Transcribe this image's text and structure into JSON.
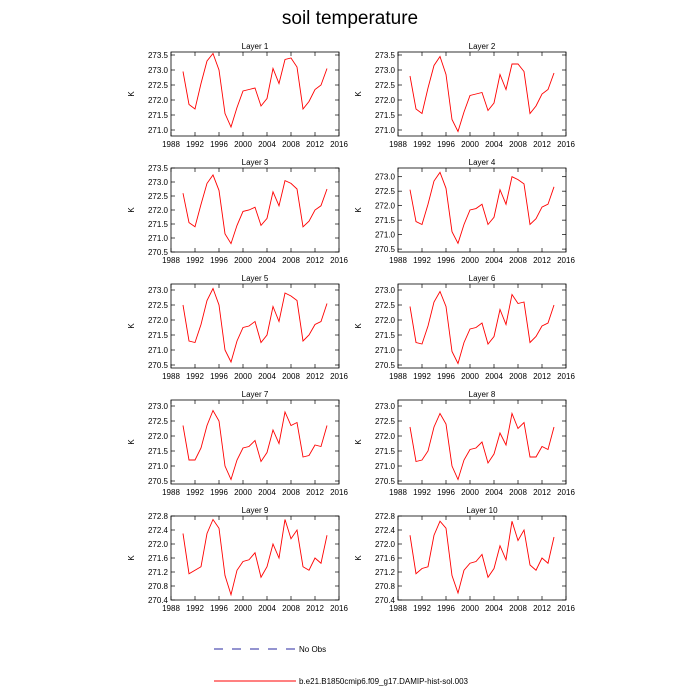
{
  "title": "soil temperature",
  "chart_data": [
    {
      "type": "line",
      "title": "Layer 1",
      "xlabel": "",
      "ylabel": "K",
      "xlim": [
        1988,
        2016
      ],
      "ylim": [
        270.8,
        273.6
      ],
      "xticks": [
        1988,
        1992,
        1996,
        2000,
        2004,
        2008,
        2012,
        2016
      ],
      "yticks": [
        271.0,
        271.5,
        272.0,
        272.5,
        273.0,
        273.5
      ],
      "series": [
        {
          "color": "#ff0000",
          "x": [
            1990,
            1991,
            1992,
            1993,
            1994,
            1995,
            1996,
            1997,
            1998,
            1999,
            2000,
            2001,
            2002,
            2003,
            2004,
            2005,
            2006,
            2007,
            2008,
            2009,
            2010,
            2011,
            2012,
            2013,
            2014
          ],
          "y": [
            272.95,
            271.85,
            271.7,
            272.55,
            273.3,
            273.55,
            273.0,
            271.55,
            271.1,
            271.75,
            272.3,
            272.35,
            272.4,
            271.8,
            272.05,
            273.05,
            272.55,
            273.35,
            273.4,
            273.1,
            271.7,
            271.95,
            272.35,
            272.5,
            273.05
          ]
        }
      ]
    },
    {
      "type": "line",
      "title": "Layer 2",
      "xlabel": "",
      "ylabel": "K",
      "xlim": [
        1988,
        2016
      ],
      "ylim": [
        270.8,
        273.6
      ],
      "xticks": [
        1988,
        1992,
        1996,
        2000,
        2004,
        2008,
        2012,
        2016
      ],
      "yticks": [
        271.0,
        271.5,
        272.0,
        272.5,
        273.0,
        273.5
      ],
      "series": [
        {
          "color": "#ff0000",
          "x": [
            1990,
            1991,
            1992,
            1993,
            1994,
            1995,
            1996,
            1997,
            1998,
            1999,
            2000,
            2001,
            2002,
            2003,
            2004,
            2005,
            2006,
            2007,
            2008,
            2009,
            2010,
            2011,
            2012,
            2013,
            2014
          ],
          "y": [
            272.8,
            271.7,
            271.55,
            272.4,
            273.15,
            273.45,
            272.85,
            271.35,
            270.95,
            271.6,
            272.15,
            272.2,
            272.25,
            271.65,
            271.9,
            272.85,
            272.35,
            273.2,
            273.2,
            272.95,
            271.55,
            271.8,
            272.2,
            272.35,
            272.9
          ]
        }
      ]
    },
    {
      "type": "line",
      "title": "Layer 3",
      "xlabel": "",
      "ylabel": "K",
      "xlim": [
        1988,
        2016
      ],
      "ylim": [
        270.5,
        273.5
      ],
      "xticks": [
        1988,
        1992,
        1996,
        2000,
        2004,
        2008,
        2012,
        2016
      ],
      "yticks": [
        270.5,
        271.0,
        271.5,
        272.0,
        272.5,
        273.0,
        273.5
      ],
      "series": [
        {
          "color": "#ff0000",
          "x": [
            1990,
            1991,
            1992,
            1993,
            1994,
            1995,
            1996,
            1997,
            1998,
            1999,
            2000,
            2001,
            2002,
            2003,
            2004,
            2005,
            2006,
            2007,
            2008,
            2009,
            2010,
            2011,
            2012,
            2013,
            2014
          ],
          "y": [
            272.6,
            271.55,
            271.4,
            272.2,
            272.95,
            273.25,
            272.7,
            271.15,
            270.8,
            271.45,
            271.95,
            272.0,
            272.1,
            271.45,
            271.7,
            272.65,
            272.15,
            273.05,
            272.95,
            272.75,
            271.4,
            271.6,
            272.0,
            272.15,
            272.75
          ]
        }
      ]
    },
    {
      "type": "line",
      "title": "Layer 4",
      "xlabel": "",
      "ylabel": "K",
      "xlim": [
        1988,
        2016
      ],
      "ylim": [
        270.4,
        273.3
      ],
      "xticks": [
        1988,
        1992,
        1996,
        2000,
        2004,
        2008,
        2012,
        2016
      ],
      "yticks": [
        270.5,
        271.0,
        271.5,
        272.0,
        272.5,
        273.0
      ],
      "series": [
        {
          "color": "#ff0000",
          "x": [
            1990,
            1991,
            1992,
            1993,
            1994,
            1995,
            1996,
            1997,
            1998,
            1999,
            2000,
            2001,
            2002,
            2003,
            2004,
            2005,
            2006,
            2007,
            2008,
            2009,
            2010,
            2011,
            2012,
            2013,
            2014
          ],
          "y": [
            272.55,
            271.45,
            271.35,
            272.05,
            272.85,
            273.15,
            272.6,
            271.1,
            270.7,
            271.35,
            271.85,
            271.9,
            272.05,
            271.35,
            271.6,
            272.55,
            272.05,
            273.0,
            272.9,
            272.75,
            271.35,
            271.55,
            271.95,
            272.05,
            272.65
          ]
        }
      ]
    },
    {
      "type": "line",
      "title": "Layer 5",
      "xlabel": "",
      "ylabel": "K",
      "xlim": [
        1988,
        2016
      ],
      "ylim": [
        270.4,
        273.2
      ],
      "xticks": [
        1988,
        1992,
        1996,
        2000,
        2004,
        2008,
        2012,
        2016
      ],
      "yticks": [
        270.5,
        271.0,
        271.5,
        272.0,
        272.5,
        273.0
      ],
      "series": [
        {
          "color": "#ff0000",
          "x": [
            1990,
            1991,
            1992,
            1993,
            1994,
            1995,
            1996,
            1997,
            1998,
            1999,
            2000,
            2001,
            2002,
            2003,
            2004,
            2005,
            2006,
            2007,
            2008,
            2009,
            2010,
            2011,
            2012,
            2013,
            2014
          ],
          "y": [
            272.5,
            271.3,
            271.25,
            271.85,
            272.65,
            273.05,
            272.5,
            271.0,
            270.6,
            271.3,
            271.75,
            271.8,
            271.95,
            271.25,
            271.5,
            272.45,
            271.95,
            272.9,
            272.8,
            272.65,
            271.3,
            271.5,
            271.85,
            271.95,
            272.55
          ]
        }
      ]
    },
    {
      "type": "line",
      "title": "Layer 6",
      "xlabel": "",
      "ylabel": "K",
      "xlim": [
        1988,
        2016
      ],
      "ylim": [
        270.4,
        273.2
      ],
      "xticks": [
        1988,
        1992,
        1996,
        2000,
        2004,
        2008,
        2012,
        2016
      ],
      "yticks": [
        270.5,
        271.0,
        271.5,
        272.0,
        272.5,
        273.0
      ],
      "series": [
        {
          "color": "#ff0000",
          "x": [
            1990,
            1991,
            1992,
            1993,
            1994,
            1995,
            1996,
            1997,
            1998,
            1999,
            2000,
            2001,
            2002,
            2003,
            2004,
            2005,
            2006,
            2007,
            2008,
            2009,
            2010,
            2011,
            2012,
            2013,
            2014
          ],
          "y": [
            272.45,
            271.25,
            271.2,
            271.8,
            272.6,
            272.95,
            272.45,
            270.95,
            270.55,
            271.25,
            271.7,
            271.75,
            271.9,
            271.2,
            271.45,
            272.35,
            271.85,
            272.85,
            272.55,
            272.6,
            271.25,
            271.45,
            271.8,
            271.9,
            272.5
          ]
        }
      ]
    },
    {
      "type": "line",
      "title": "Layer 7",
      "xlabel": "",
      "ylabel": "K",
      "xlim": [
        1988,
        2016
      ],
      "ylim": [
        270.4,
        273.2
      ],
      "xticks": [
        1988,
        1992,
        1996,
        2000,
        2004,
        2008,
        2012,
        2016
      ],
      "yticks": [
        270.5,
        271.0,
        271.5,
        272.0,
        272.5,
        273.0
      ],
      "series": [
        {
          "color": "#ff0000",
          "x": [
            1990,
            1991,
            1992,
            1993,
            1994,
            1995,
            1996,
            1997,
            1998,
            1999,
            2000,
            2001,
            2002,
            2003,
            2004,
            2005,
            2006,
            2007,
            2008,
            2009,
            2010,
            2011,
            2012,
            2013,
            2014
          ],
          "y": [
            272.35,
            271.2,
            271.2,
            271.6,
            272.35,
            272.85,
            272.5,
            271.0,
            270.55,
            271.2,
            271.6,
            271.65,
            271.85,
            271.15,
            271.45,
            272.2,
            271.75,
            272.8,
            272.35,
            272.45,
            271.3,
            271.35,
            271.7,
            271.65,
            272.35
          ]
        }
      ]
    },
    {
      "type": "line",
      "title": "Layer 8",
      "xlabel": "",
      "ylabel": "K",
      "xlim": [
        1988,
        2016
      ],
      "ylim": [
        270.4,
        273.2
      ],
      "xticks": [
        1988,
        1992,
        1996,
        2000,
        2004,
        2008,
        2012,
        2016
      ],
      "yticks": [
        270.5,
        271.0,
        271.5,
        272.0,
        272.5,
        273.0
      ],
      "series": [
        {
          "color": "#ff0000",
          "x": [
            1990,
            1991,
            1992,
            1993,
            1994,
            1995,
            1996,
            1997,
            1998,
            1999,
            2000,
            2001,
            2002,
            2003,
            2004,
            2005,
            2006,
            2007,
            2008,
            2009,
            2010,
            2011,
            2012,
            2013,
            2014
          ],
          "y": [
            272.3,
            271.15,
            271.2,
            271.5,
            272.3,
            272.75,
            272.4,
            271.0,
            270.55,
            271.2,
            271.55,
            271.6,
            271.8,
            271.1,
            271.4,
            272.1,
            271.7,
            272.75,
            272.25,
            272.45,
            271.3,
            271.3,
            271.65,
            271.55,
            272.3
          ]
        }
      ]
    },
    {
      "type": "line",
      "title": "Layer 9",
      "xlabel": "",
      "ylabel": "K",
      "xlim": [
        1988,
        2016
      ],
      "ylim": [
        270.4,
        272.8
      ],
      "xticks": [
        1988,
        1992,
        1996,
        2000,
        2004,
        2008,
        2012,
        2016
      ],
      "yticks": [
        270.4,
        270.8,
        271.2,
        271.6,
        272.0,
        272.4,
        272.8
      ],
      "series": [
        {
          "color": "#ff0000",
          "x": [
            1990,
            1991,
            1992,
            1993,
            1994,
            1995,
            1996,
            1997,
            1998,
            1999,
            2000,
            2001,
            2002,
            2003,
            2004,
            2005,
            2006,
            2007,
            2008,
            2009,
            2010,
            2011,
            2012,
            2013,
            2014
          ],
          "y": [
            272.3,
            271.15,
            271.25,
            271.35,
            272.3,
            272.7,
            272.45,
            271.1,
            270.55,
            271.25,
            271.5,
            271.55,
            271.75,
            271.05,
            271.35,
            272.0,
            271.6,
            272.7,
            272.15,
            272.4,
            271.35,
            271.25,
            271.6,
            271.45,
            272.25
          ]
        }
      ]
    },
    {
      "type": "line",
      "title": "Layer 10",
      "xlabel": "",
      "ylabel": "K",
      "xlim": [
        1988,
        2016
      ],
      "ylim": [
        270.4,
        272.8
      ],
      "xticks": [
        1988,
        1992,
        1996,
        2000,
        2004,
        2008,
        2012,
        2016
      ],
      "yticks": [
        270.4,
        270.8,
        271.2,
        271.6,
        272.0,
        272.4,
        272.8
      ],
      "series": [
        {
          "color": "#ff0000",
          "x": [
            1990,
            1991,
            1992,
            1993,
            1994,
            1995,
            1996,
            1997,
            1998,
            1999,
            2000,
            2001,
            2002,
            2003,
            2004,
            2005,
            2006,
            2007,
            2008,
            2009,
            2010,
            2011,
            2012,
            2013,
            2014
          ],
          "y": [
            272.25,
            271.15,
            271.3,
            271.35,
            272.25,
            272.65,
            272.45,
            271.1,
            270.6,
            271.25,
            271.45,
            271.5,
            271.7,
            271.05,
            271.3,
            271.95,
            271.55,
            272.65,
            272.1,
            272.4,
            271.4,
            271.25,
            271.6,
            271.45,
            272.2
          ]
        }
      ]
    }
  ],
  "legend": [
    {
      "label": "No Obs",
      "color": "#2a2aa0",
      "style": "dashed"
    },
    {
      "label": "b.e21.B1850cmip6.f09_g17.DAMIP-hist-sol.003",
      "color": "#ff0000",
      "style": "solid"
    }
  ]
}
